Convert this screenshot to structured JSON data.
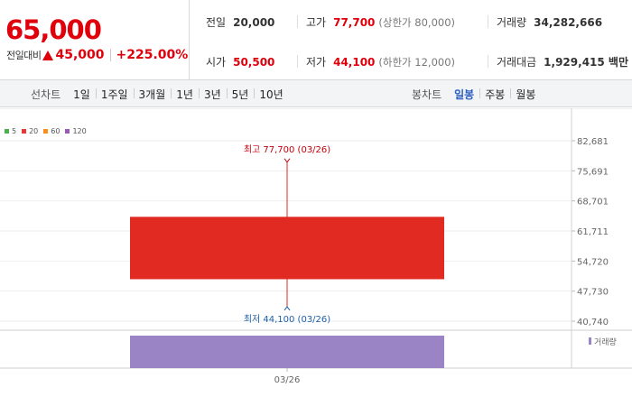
{
  "quote": {
    "price": "65,000",
    "change_label": "전일대비",
    "change_value": "45,000",
    "change_rate": "+225.00%",
    "prev_close": {
      "label": "전일",
      "value": "20,000"
    },
    "open": {
      "label": "시가",
      "value": "50,500"
    },
    "high": {
      "label": "고가",
      "value": "77,700",
      "note": "(상한가 80,000)"
    },
    "low": {
      "label": "저가",
      "value": "44,100",
      "note": "(하한가 12,000)"
    },
    "volume": {
      "label": "거래량",
      "value": "34,282,666"
    },
    "amount": {
      "label": "거래대금",
      "value": "1,929,415 백만"
    }
  },
  "colors": {
    "up": "#e0000b",
    "candle": "#e12a22",
    "volume_bar": "#9b84c6",
    "ma5": "#4caf50",
    "ma20": "#e53935",
    "ma60": "#ff8c1a",
    "ma120": "#9b59b6",
    "high_annotation": "#c0000a",
    "low_annotation": "#1d5fa8",
    "active_tab": "#2b5fbd"
  },
  "toolbar": {
    "line_chart_title": "선차트",
    "line_periods": [
      "1일",
      "1주일",
      "3개월",
      "1년",
      "3년",
      "5년",
      "10년"
    ],
    "candle_title": "봉차트",
    "candle_periods": [
      "일봉",
      "주봉",
      "월봉"
    ],
    "active_candle_period": "일봉"
  },
  "legend": [
    {
      "label": "5",
      "color": "#4caf50"
    },
    {
      "label": "20",
      "color": "#e53935"
    },
    {
      "label": "60",
      "color": "#ff8c1a"
    },
    {
      "label": "120",
      "color": "#9b59b6"
    }
  ],
  "chart_data": {
    "type": "candlestick",
    "x": [
      "03/26"
    ],
    "ohlc": [
      {
        "date": "03/26",
        "open": 50500,
        "high": 77700,
        "low": 44100,
        "close": 65000
      }
    ],
    "volume": [
      34282666
    ],
    "y_ticks": [
      40740,
      47730,
      54720,
      61711,
      68701,
      75691,
      82681
    ],
    "y_tick_labels": [
      "40,740",
      "47,730",
      "54,720",
      "61,711",
      "68,701",
      "75,691",
      "82,681"
    ],
    "ylim": [
      40740,
      82681
    ],
    "high_label": "최고 77,700 (03/26)",
    "low_label": "최저 44,100 (03/26)",
    "volume_legend": "거래량",
    "grid": true
  }
}
